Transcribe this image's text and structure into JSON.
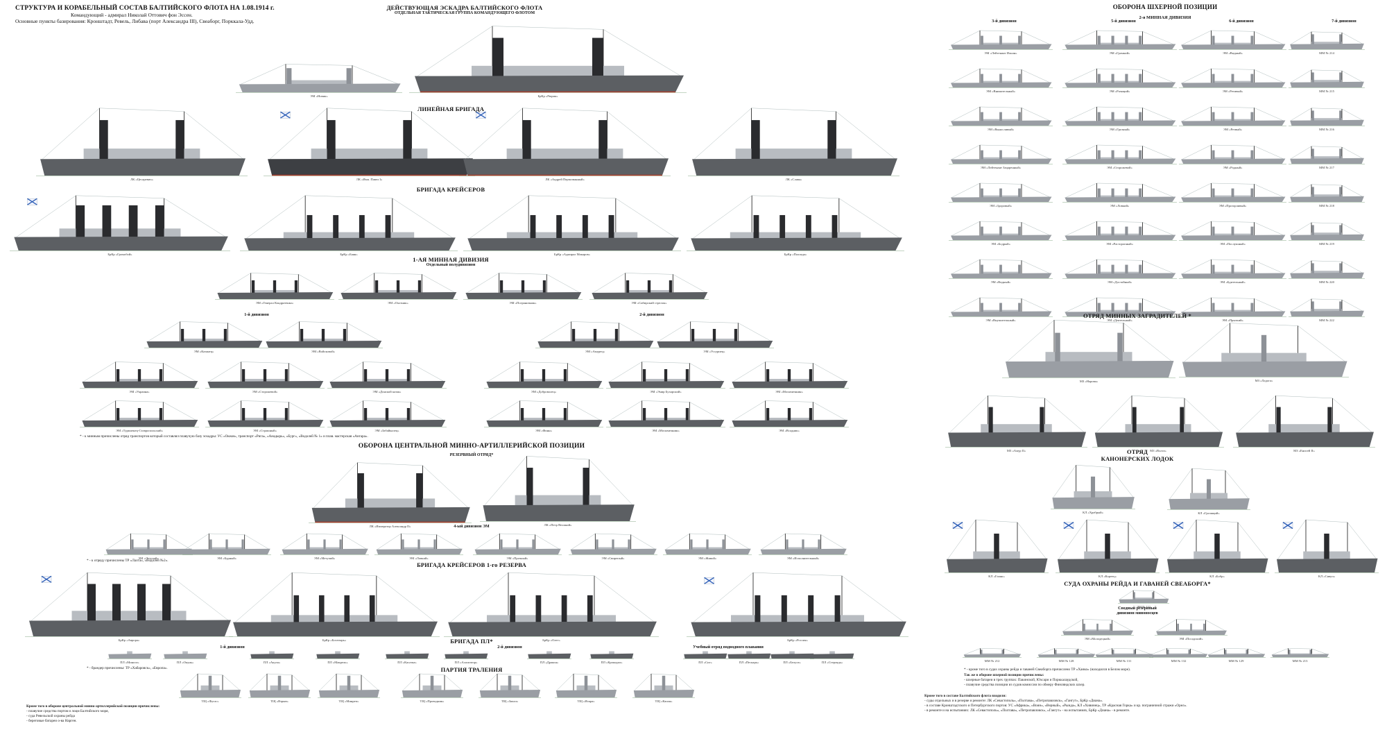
{
  "header": {
    "title": "СТРУКТУРА И КОРАБЕЛЬНЫЙ СОСТАВ БАЛТИЙСКОГО ФЛОТА НА 1.08.1914 г.",
    "commander": "Командующий - адмирал Николай Оттович фон Эссен.",
    "bases": "Основные пункты базирования: Кронштадт, Ревель, Либава (порт Александра III), Свеаборг, Порккала-Удд."
  },
  "left": {
    "squadron_title": "ДЕЙСТВУЮЩАЯ ЭСКАДРА БАЛТИЙСКОГО ФЛОТА",
    "squadron_sub": "ОТДЕЛЬНАЯ ТАКТИЧЕСКАЯ ГРУППА КОМАНДУЮЩЕГО ФЛОТОМ",
    "hq_ships": [
      "ЭМ «Новик»",
      "БрКр «Рюрик»"
    ],
    "battleship_title": "ЛИНЕЙНАЯ БРИГАДА",
    "battleships": [
      "ЛК «Цесаревич»",
      "ЛК «Имп. Павел I»",
      "ЛК «Андрей Первозванный»",
      "ЛК «Слава»"
    ],
    "cruiser_title": "БРИГАДА КРЕЙСЕРОВ",
    "cruisers": [
      "БрКр «Громобой»",
      "БрКр «Баян»",
      "БрКр «Адмирал Макаров»",
      "БрКр «Паллада»"
    ],
    "destroyer1_title": "1-АЯ МИННАЯ ДИВИЗИЯ",
    "destroyer1_sub": "Отдельный полудивизион",
    "destroyer1_row": [
      "ЭМ «Генерал Кондратенко»",
      "ЭМ «Охотник»",
      "ЭМ «Пограничник»",
      "ЭМ «Сибирский стрелок»"
    ],
    "div1_label": "1-й дивизион",
    "div2_label": "2-й дивизион",
    "div1_row1": [
      "ЭМ «Казанец»",
      "ЭМ «Войсковой»"
    ],
    "div2_row1": [
      "ЭМ «Амурец»",
      "ЭМ «Уссуриец»"
    ],
    "div1_row2": [
      "ЭМ «Украина»",
      "ЭМ «Сторожевой»",
      "ЭМ «Донской казак»"
    ],
    "div2_row2": [
      "ЭМ «Доброволец»",
      "ЭМ «Эмир Бухарский»",
      "ЭМ «Москвитянин»"
    ],
    "div1_row3": [
      "ЭМ «Туркменец-Ставропольский»",
      "ЭМ «Страшный»",
      "ЭМ «Забайкалец»"
    ],
    "div2_row3": [
      "ЭМ «Финн»",
      "ЭМ «Москвитянин»",
      "ЭМ «Всадник»"
    ],
    "destroyer_note": "* - к минным причислены отряд транспортов который составлял плавучую базу эскадры: УС «Океан», транспорт «Рига», «Анадырь», «Бург», «Водолей № 1» и плав. мастерская «Ангара».",
    "central_title": "ОБОРОНА ЦЕНТРАЛЬНОЙ МИННО-АРТИЛЛЕРИЙСКОЙ ПОЗИЦИИ",
    "reserve_title": "РЕЗЕРВНЫЙ ОТРЯД*",
    "reserve_ships": [
      "ЛК «Император Александр II»",
      "ЛК «Петр Великий»"
    ],
    "div4_title": "4-ый дивизион ЭМ",
    "div4_row": [
      "ЭМ «Летучий»",
      "ЭМ «Бурный»",
      "ЭМ «Метучий»",
      "ЭМ «Ловкий»",
      "ЭМ «Прочный»",
      "ЭМ «Свирепый»",
      "ЭМ «Живой»",
      "ЭМ «Исполнительный»"
    ],
    "div4_note": "* - к отряду причислены ТР «Лахта», «Водолей №2».",
    "note_transports": "* - брандер причислены: ТР «Хабаровск», «Европа».",
    "reserve_cruiser_title": "БРИГАДА КРЕЙСЕРОВ 1-го РЕЗЕРВА",
    "reserve_cruisers": [
      "БрКр «Аврора»",
      "БрКр «Богатырь»",
      "БрКр «Олег»",
      "БрКр «Россия»"
    ],
    "sub_title": "БРИГАДА ПЛ*",
    "sub_div1": "1-й дивизион",
    "sub_div2": "2-й дивизион",
    "sub_div3": "Учебный отряд подводного плавания",
    "subs": [
      "ПЛ «Минога»",
      "ПЛ «Окунь»",
      "ПЛ «Акула»",
      "ПЛ «Макрель»",
      "ПЛ «Касатка»",
      "ПЛ «Аллигатор»",
      "ПЛ «Дракон»",
      "ПЛ «Крокодил»",
      "ПЛ «Сиг»",
      "ПЛ «Пескарь»",
      "ПЛ «Белуга»",
      "ПЛ «Стерлядь»"
    ],
    "trawl_title": "ПАРТИЯ ТРАЛЕНИЯ",
    "trawlers": [
      "ТЩ «Фугас»",
      "ТЩ «Взрыв»",
      "ТЩ «Минреп»",
      "ТЩ «Проводник»",
      "ТЩ «Запал»",
      "ТЩ «Искра»",
      "ТЩ «Капля»"
    ],
    "bottom_notes": [
      "Кроме того в обороне центральной минно-артиллерийской позиции причислены:",
      "- плавучие средства портов и лоцм Балтийского моря,",
      "- суда Ревельской охраны рейда",
      "- береговые батареи о-ва Нарген."
    ]
  },
  "right": {
    "skerry_title": "ОБОРОНА ШХЕРНОЙ ПОЗИЦИИ",
    "div2_mine_title": "2-я МИННАЯ ДИВИЗИЯ",
    "col_labels": [
      "3-й дивизион",
      "5-й дивизион",
      "6-й дивизион",
      "7-й дивизион"
    ],
    "grid": [
      [
        "ЭМ «Лейтенант Ильин»",
        "ЭМ «Громкий»",
        "ЭМ «Видный»",
        "ММ № 214"
      ],
      [
        "ЭМ «Внимательный»",
        "ЭМ «Разящий»",
        "ЭМ «Ретивый»",
        "ММ № 215"
      ],
      [
        "ЭМ «Выносливый»",
        "ЭМ «Грозный»",
        "ЭМ «Резвый»",
        "ММ № 216"
      ],
      [
        "ЭМ «Лейтенант Зацаренный»",
        "ЭМ «Сторожевой»",
        "ЭМ «Родный»",
        "ММ № 217"
      ],
      [
        "ЭМ «Здоровый»",
        "ЭМ «Ловкий»",
        "ЭМ «Прозорливый»",
        "ММ № 218"
      ],
      [
        "ЭМ «Бодрый»",
        "ЭМ «Расторопный»",
        "ЭМ «Послушный»",
        "ММ № 219"
      ],
      [
        "ЭМ «Видный»",
        "ЭМ «Достойный»",
        "ЭМ «Бдительный»",
        "ММ № 220"
      ],
      [
        "ЭМ «Внушительный»",
        "ЭМ «Деятельный»",
        "ЭМ «Прыткий»",
        "ММ № 222"
      ]
    ],
    "minelayer_title": "ОТРЯД МИННЫХ ЗАГРАДИТЕЛЕЙ *",
    "minelayers": [
      "МЗ «Нарова»",
      "МЗ «Ладога»"
    ],
    "minelayers2": [
      "МЗ «Амур II»",
      "МЗ «Волга»",
      "МЗ «Енисей II»"
    ],
    "gunboat_title_1": "ОТРЯД",
    "gunboat_title_2": "КАНОНЕРСКИХ ЛОДОК",
    "gunboats_small": [
      "КЛ «Храбрый»",
      "КЛ «Грозящий»"
    ],
    "gunboats": [
      "КЛ «Гиляк»",
      "КЛ «Кореец»",
      "КЛ «Бобр»",
      "КЛ «Сивуч»"
    ],
    "guard_title": "СУДА ОХРАНЫ РЕЙДА И ГАВАНЕЙ СВЕАБОРГА*",
    "guard_ship": "ЭМ № 111",
    "reserve_div_1": "Сводный резервный",
    "reserve_div_2": "дивизион миноносцев",
    "reserve_div_ships": [
      "ЭМ «Молодецкий»",
      "ЭМ «Посадский»"
    ],
    "small_mm": [
      "ММ № 212",
      "ММ № 128",
      "ММ № 131",
      "ММ № 132",
      "ММ № 129",
      "ММ № 213"
    ],
    "guard_note": "* - кроме того в судах охраны рейда и гаваней Свеаборга причислено ТР «Ханко» (находился в Белом море).",
    "skerry_extra": [
      "Так же в обороне шхерной позиции причислены:",
      "- шхерные батареи в трех группах: Пакинской, Юхсари и Порккалаудской,",
      "- плавучие средства позиции из судов комиссии по обмеру Финляндских шхер."
    ],
    "bottom_notes": [
      "Кроме того в составе Балтийского флота входили:",
      "- суды отдельных и в резерве и ремонте: ЛК «Севастополь», «Полтава», «Петропавловск», «Гангут», БрКр «Диана».",
      "- в составе Кронштадтского и Петербургского портов: УС «Африка», «Воин», «Верный», «Рында», КЛ «Хивинец», ТР «Красная Горка» и кр. пограничной стражи «Орел».",
      "- в ремонте и на испытаниях: ЛК «Севастополь», «Полтава», «Петропавловск», «Гангут» - на испытаниях, БрКр «Диана» - в ремонте."
    ]
  },
  "colors": {
    "background": "#ffffff",
    "hull_grey": "#5c5f63",
    "superstructure": "#b8bcc1",
    "funnel": "#2a2b2e",
    "boot_topping": "#b23a2a"
  }
}
